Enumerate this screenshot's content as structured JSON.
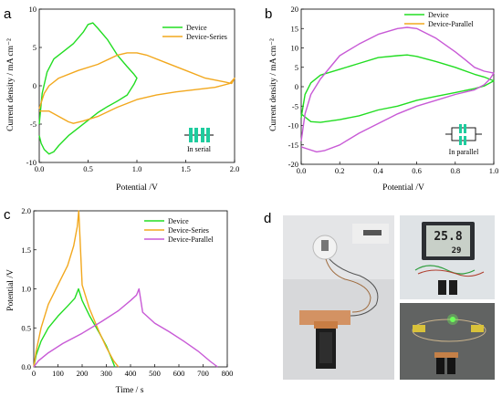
{
  "colors": {
    "device": "#22dd22",
    "series": "#f2a81e",
    "parallel": "#c85ad6",
    "cell": "#1ecc9e"
  },
  "panels": {
    "a": {
      "letter": "a",
      "xlabel": "Potential /V",
      "ylabel": "Current density / mA cm⁻²",
      "xticks": [
        "0.0",
        "0.5",
        "1.0",
        "1.5",
        "2.0"
      ],
      "yticks": [
        "10",
        "5",
        "0",
        "-5",
        "-10"
      ],
      "legend": [
        "Device",
        "Device-Series"
      ],
      "note": "In serial"
    },
    "b": {
      "letter": "b",
      "xlabel": "Potential /V",
      "ylabel": "Current density / mA cm⁻²",
      "xticks": [
        "0.0",
        "0.2",
        "0.4",
        "0.6",
        "0.8",
        "1.0"
      ],
      "yticks": [
        "20",
        "15",
        "10",
        "5",
        "0",
        "-5",
        "-10",
        "-15",
        "-20"
      ],
      "legend": [
        "Device",
        "Device-Parallel"
      ],
      "note": "In parallel"
    },
    "c": {
      "letter": "c",
      "xlabel": "Time / s",
      "ylabel": "Potential /V",
      "xticks": [
        "0",
        "100",
        "200",
        "300",
        "400",
        "500",
        "600",
        "700",
        "800"
      ],
      "yticks": [
        "2.0",
        "1.5",
        "1.0",
        "0.5",
        "0.0"
      ],
      "legend": [
        "Device",
        "Device-Series",
        "Device-Parallel"
      ]
    },
    "d": {
      "letter": "d",
      "clock_display": "25.8",
      "clock_display2": "29"
    }
  },
  "chart_data": [
    {
      "panel": "a",
      "type": "line",
      "xlim": [
        0,
        2.0
      ],
      "ylim": [
        -10,
        10
      ],
      "series": [
        {
          "name": "Device",
          "x": [
            0.0,
            0.03,
            0.08,
            0.15,
            0.25,
            0.35,
            0.45,
            0.5,
            0.55,
            0.6,
            0.7,
            0.8,
            0.9,
            0.97,
            1.0,
            0.97,
            0.9,
            0.8,
            0.7,
            0.6,
            0.5,
            0.4,
            0.3,
            0.2,
            0.15,
            0.1,
            0.05,
            0.02,
            0.0
          ],
          "y": [
            -5.0,
            -1.0,
            1.8,
            3.5,
            4.5,
            5.5,
            7.0,
            8.0,
            8.2,
            7.5,
            6.0,
            4.0,
            2.5,
            1.5,
            1.0,
            0.2,
            -1.2,
            -2.0,
            -2.7,
            -3.5,
            -4.5,
            -5.5,
            -6.5,
            -7.8,
            -8.6,
            -8.9,
            -8.3,
            -7.5,
            -6.5
          ]
        },
        {
          "name": "Device-Series",
          "x": [
            0.0,
            0.05,
            0.1,
            0.2,
            0.4,
            0.6,
            0.8,
            0.9,
            1.0,
            1.1,
            1.3,
            1.5,
            1.7,
            1.9,
            1.97,
            2.0,
            1.95,
            1.8,
            1.6,
            1.4,
            1.2,
            1.0,
            0.8,
            0.6,
            0.45,
            0.35,
            0.3,
            0.2,
            0.1,
            0.0
          ],
          "y": [
            -3.0,
            -1.0,
            0.0,
            1.0,
            2.0,
            2.8,
            4.0,
            4.3,
            4.3,
            4.0,
            3.0,
            2.0,
            1.0,
            0.5,
            0.3,
            1.0,
            0.3,
            -0.2,
            -0.5,
            -0.8,
            -1.2,
            -1.8,
            -2.8,
            -4.0,
            -4.6,
            -4.9,
            -4.7,
            -4.0,
            -3.3,
            -3.3
          ]
        }
      ]
    },
    {
      "panel": "b",
      "type": "line",
      "xlim": [
        0,
        1.0
      ],
      "ylim": [
        -20,
        20
      ],
      "series": [
        {
          "name": "Device",
          "x": [
            0.0,
            0.02,
            0.05,
            0.1,
            0.2,
            0.3,
            0.4,
            0.5,
            0.55,
            0.6,
            0.7,
            0.8,
            0.9,
            0.95,
            1.0,
            0.95,
            0.9,
            0.8,
            0.7,
            0.6,
            0.5,
            0.4,
            0.3,
            0.2,
            0.1,
            0.05,
            0.0
          ],
          "y": [
            -8.0,
            -2.0,
            1.0,
            3.0,
            4.5,
            6.0,
            7.5,
            8.0,
            8.2,
            7.8,
            6.5,
            5.0,
            3.2,
            2.5,
            1.5,
            0.2,
            -0.5,
            -1.5,
            -2.5,
            -3.5,
            -5.0,
            -6.0,
            -7.5,
            -8.5,
            -9.2,
            -9.0,
            -7.0
          ]
        },
        {
          "name": "Device-Parallel",
          "x": [
            0.0,
            0.02,
            0.05,
            0.1,
            0.2,
            0.3,
            0.4,
            0.5,
            0.55,
            0.6,
            0.7,
            0.8,
            0.85,
            0.9,
            0.95,
            1.0,
            0.98,
            0.95,
            0.9,
            0.8,
            0.7,
            0.6,
            0.5,
            0.4,
            0.3,
            0.2,
            0.12,
            0.08,
            0.03,
            0.0
          ],
          "y": [
            -14.0,
            -7.0,
            -2.0,
            2.0,
            8.0,
            11.0,
            13.5,
            15.0,
            15.3,
            15.0,
            12.5,
            9.0,
            7.0,
            5.0,
            4.0,
            3.5,
            2.0,
            0.5,
            -0.8,
            -2.0,
            -3.5,
            -5.0,
            -7.0,
            -9.5,
            -12.0,
            -15.0,
            -16.5,
            -16.8,
            -16.0,
            -15.5
          ]
        }
      ]
    },
    {
      "panel": "c",
      "type": "line",
      "xlim": [
        0,
        800
      ],
      "ylim": [
        0,
        2.0
      ],
      "series": [
        {
          "name": "Device",
          "x": [
            0,
            10,
            30,
            60,
            100,
            140,
            170,
            185,
            200,
            230,
            270,
            300,
            320,
            335
          ],
          "y": [
            0.0,
            0.15,
            0.33,
            0.5,
            0.65,
            0.78,
            0.88,
            1.0,
            0.85,
            0.66,
            0.44,
            0.27,
            0.12,
            0.0
          ]
        },
        {
          "name": "Device-Series",
          "x": [
            0,
            10,
            30,
            60,
            100,
            140,
            165,
            180,
            186,
            200,
            230,
            270,
            300,
            330,
            350
          ],
          "y": [
            0.0,
            0.2,
            0.5,
            0.8,
            1.05,
            1.3,
            1.55,
            1.8,
            2.0,
            1.05,
            0.75,
            0.45,
            0.25,
            0.08,
            0.0
          ]
        },
        {
          "name": "Device-Parallel",
          "x": [
            0,
            20,
            60,
            120,
            200,
            280,
            350,
            400,
            425,
            435,
            450,
            500,
            560,
            620,
            680,
            730,
            760
          ],
          "y": [
            0.0,
            0.08,
            0.18,
            0.3,
            0.43,
            0.58,
            0.72,
            0.85,
            0.92,
            1.0,
            0.7,
            0.56,
            0.45,
            0.33,
            0.2,
            0.07,
            0.0
          ]
        }
      ]
    }
  ]
}
